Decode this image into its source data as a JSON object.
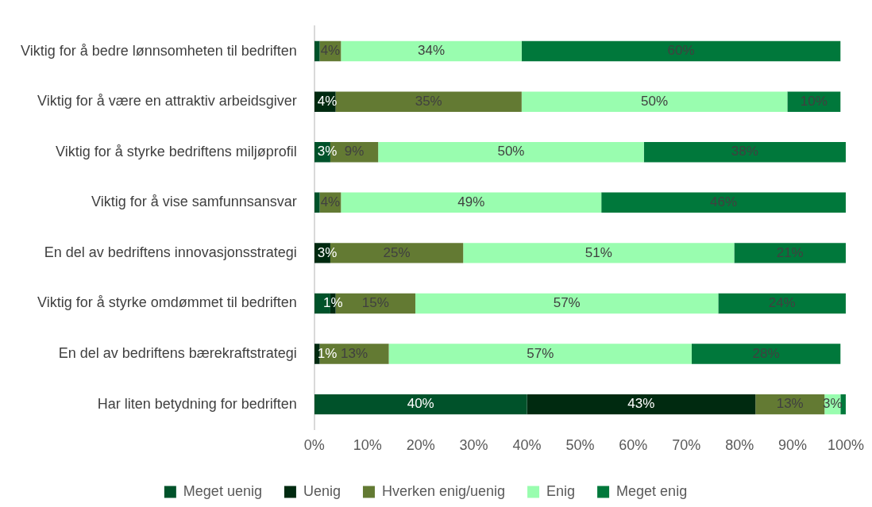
{
  "chart_data": {
    "type": "bar",
    "orientation": "horizontal",
    "stacked": true,
    "legend": "bottom",
    "grid": false,
    "categories": [
      "Viktig for å bedre lønnsomheten til bedriften",
      "Viktig for å være en attraktiv arbeidsgiver",
      "Viktig for å styrke bedriftens miljøprofil",
      "Viktig for å vise samfunnsansvar",
      "En del av bedriftens innovasjonsstrategi",
      "Viktig for å styrke omdømmet til bedriften",
      "En del av bedriftens bærekraftstrategi",
      "Har liten betydning for bedriften"
    ],
    "xlim": [
      0,
      100
    ],
    "xticks": [
      {
        "value": 0,
        "label": "0%"
      },
      {
        "value": 10,
        "label": "10%"
      },
      {
        "value": 20,
        "label": "20%"
      },
      {
        "value": 30,
        "label": "30%"
      },
      {
        "value": 40,
        "label": "40%"
      },
      {
        "value": 50,
        "label": "50%"
      },
      {
        "value": 60,
        "label": "60%"
      },
      {
        "value": 70,
        "label": "70%"
      },
      {
        "value": 80,
        "label": "80%"
      },
      {
        "value": 90,
        "label": "90%"
      },
      {
        "value": 100,
        "label": "100%"
      }
    ],
    "series": [
      {
        "name": "Meget uenig",
        "color": "#00522a",
        "values": [
          1,
          0,
          3,
          1,
          0,
          3,
          0,
          40
        ],
        "value_labels": [
          null,
          null,
          "3%",
          null,
          null,
          null,
          null,
          "40%"
        ]
      },
      {
        "name": "Uenig",
        "color": "#002a10",
        "values": [
          0,
          4,
          0,
          0,
          3,
          1,
          1,
          43
        ],
        "value_labels": [
          null,
          "4%",
          null,
          null,
          "3%",
          "1%",
          "1%",
          "43%"
        ]
      },
      {
        "name": "Hverken enig/uenig",
        "color": "#637a33",
        "values": [
          4,
          35,
          9,
          4,
          25,
          15,
          13,
          13
        ],
        "value_labels": [
          "4%",
          "35%",
          "9%",
          "4%",
          "25%",
          "15%",
          "13%",
          "13%"
        ]
      },
      {
        "name": "Enig",
        "color": "#99fdaf",
        "values": [
          34,
          50,
          50,
          49,
          51,
          57,
          57,
          3
        ],
        "value_labels": [
          "34%",
          "50%",
          "50%",
          "49%",
          "51%",
          "57%",
          "57%",
          "3%"
        ]
      },
      {
        "name": "Meget enig",
        "color": "#00783b",
        "values": [
          60,
          10,
          38,
          46,
          21,
          24,
          28,
          1
        ],
        "value_labels": [
          "60%",
          "10%",
          "38%",
          "46%",
          "21%",
          "24%",
          "28%",
          null
        ]
      }
    ]
  }
}
